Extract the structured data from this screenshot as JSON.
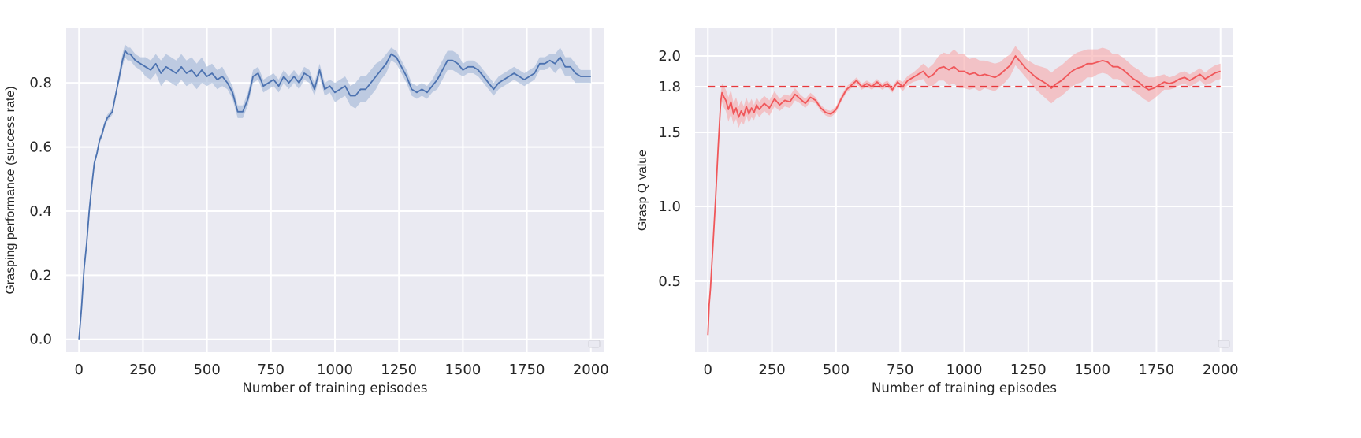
{
  "chart_data": [
    {
      "type": "line",
      "xlabel": "Number of training episodes",
      "ylabel": "Grasping performance (success rate)",
      "xlim": [
        -50,
        2050
      ],
      "ylim": [
        -0.04,
        0.97
      ],
      "xticks": [
        0,
        250,
        500,
        750,
        1000,
        1250,
        1500,
        1750,
        2000
      ],
      "yticks": [
        0.0,
        0.2,
        0.4,
        0.6,
        0.8
      ],
      "ytick_labels": [
        "0.0",
        "0.2",
        "0.4",
        "0.6",
        "0.8"
      ],
      "grid": true,
      "legend": "lower-right (empty box)",
      "color": "#4c72b0",
      "band_color": "#9fb4d6",
      "series": [
        {
          "x": [
            0,
            10,
            20,
            30,
            40,
            50,
            60,
            70,
            80,
            90,
            100,
            110,
            120,
            130,
            140,
            150,
            160,
            170,
            180,
            190,
            200,
            220,
            240,
            260,
            280,
            300,
            320,
            340,
            360,
            380,
            400,
            420,
            440,
            460,
            480,
            500,
            520,
            540,
            560,
            580,
            600,
            620,
            640,
            660,
            680,
            700,
            720,
            740,
            760,
            780,
            800,
            820,
            840,
            860,
            880,
            900,
            920,
            940,
            960,
            980,
            1000,
            1020,
            1040,
            1060,
            1080,
            1100,
            1120,
            1140,
            1160,
            1180,
            1200,
            1220,
            1240,
            1260,
            1280,
            1300,
            1320,
            1340,
            1360,
            1380,
            1400,
            1420,
            1440,
            1460,
            1480,
            1500,
            1520,
            1540,
            1560,
            1580,
            1600,
            1620,
            1640,
            1660,
            1680,
            1700,
            1720,
            1740,
            1760,
            1780,
            1800,
            1820,
            1840,
            1860,
            1880,
            1900,
            1920,
            1940,
            1960,
            1980,
            2000
          ],
          "y": [
            0.0,
            0.1,
            0.22,
            0.3,
            0.4,
            0.48,
            0.55,
            0.58,
            0.62,
            0.64,
            0.67,
            0.69,
            0.7,
            0.71,
            0.75,
            0.79,
            0.83,
            0.87,
            0.9,
            0.89,
            0.89,
            0.87,
            0.86,
            0.85,
            0.84,
            0.86,
            0.83,
            0.85,
            0.84,
            0.83,
            0.85,
            0.83,
            0.84,
            0.82,
            0.84,
            0.82,
            0.83,
            0.81,
            0.82,
            0.8,
            0.77,
            0.71,
            0.71,
            0.75,
            0.82,
            0.83,
            0.79,
            0.8,
            0.81,
            0.79,
            0.82,
            0.8,
            0.82,
            0.8,
            0.83,
            0.82,
            0.78,
            0.84,
            0.78,
            0.79,
            0.77,
            0.78,
            0.79,
            0.76,
            0.76,
            0.78,
            0.78,
            0.8,
            0.82,
            0.84,
            0.86,
            0.89,
            0.88,
            0.85,
            0.82,
            0.78,
            0.77,
            0.78,
            0.77,
            0.79,
            0.81,
            0.84,
            0.87,
            0.87,
            0.86,
            0.84,
            0.85,
            0.85,
            0.84,
            0.82,
            0.8,
            0.78,
            0.8,
            0.81,
            0.82,
            0.83,
            0.82,
            0.81,
            0.82,
            0.83,
            0.86,
            0.86,
            0.87,
            0.86,
            0.88,
            0.85,
            0.85,
            0.83,
            0.82,
            0.82,
            0.82
          ],
          "band": [
            0.0,
            0.01,
            0.01,
            0.01,
            0.01,
            0.01,
            0.01,
            0.01,
            0.01,
            0.01,
            0.01,
            0.01,
            0.01,
            0.01,
            0.01,
            0.01,
            0.02,
            0.02,
            0.02,
            0.02,
            0.02,
            0.02,
            0.02,
            0.03,
            0.03,
            0.03,
            0.04,
            0.04,
            0.04,
            0.04,
            0.04,
            0.04,
            0.04,
            0.04,
            0.04,
            0.03,
            0.03,
            0.03,
            0.03,
            0.02,
            0.02,
            0.02,
            0.02,
            0.02,
            0.02,
            0.02,
            0.02,
            0.02,
            0.02,
            0.02,
            0.02,
            0.02,
            0.02,
            0.02,
            0.02,
            0.02,
            0.02,
            0.02,
            0.02,
            0.02,
            0.03,
            0.03,
            0.03,
            0.03,
            0.04,
            0.04,
            0.04,
            0.04,
            0.04,
            0.03,
            0.03,
            0.02,
            0.02,
            0.02,
            0.02,
            0.02,
            0.02,
            0.02,
            0.02,
            0.02,
            0.03,
            0.03,
            0.03,
            0.03,
            0.03,
            0.02,
            0.02,
            0.02,
            0.02,
            0.02,
            0.02,
            0.02,
            0.02,
            0.02,
            0.02,
            0.02,
            0.02,
            0.02,
            0.02,
            0.02,
            0.02,
            0.02,
            0.02,
            0.03,
            0.03,
            0.03,
            0.03,
            0.03,
            0.02,
            0.02,
            0.02
          ]
        }
      ]
    },
    {
      "type": "line",
      "xlabel": "Number of training episodes",
      "ylabel": "Grasp Q value",
      "xlim": [
        -50,
        2050
      ],
      "ylim": [
        0.1,
        2.1
      ],
      "xticks": [
        0,
        250,
        500,
        750,
        1000,
        1250,
        1500,
        1750,
        2000
      ],
      "yticks": [
        0.5,
        1.0,
        1.5,
        1.8,
        2.0
      ],
      "ytick_labels": [
        "0.5",
        "1.0",
        "1.5",
        "1.8",
        "2.0"
      ],
      "grid": true,
      "legend": "lower-right (empty box)",
      "color": "#f0575a",
      "band_color": "#f6a6a8",
      "reference_line": {
        "y": 1.8,
        "style": "dashed",
        "color": "#e8383c"
      },
      "series": [
        {
          "x": [
            0,
            5,
            10,
            20,
            30,
            40,
            50,
            55,
            60,
            70,
            80,
            90,
            100,
            110,
            120,
            130,
            140,
            150,
            160,
            170,
            180,
            190,
            200,
            220,
            240,
            260,
            280,
            300,
            320,
            340,
            360,
            380,
            400,
            420,
            440,
            460,
            480,
            500,
            520,
            540,
            560,
            580,
            600,
            620,
            640,
            660,
            680,
            700,
            720,
            740,
            760,
            780,
            800,
            820,
            840,
            860,
            880,
            900,
            920,
            940,
            960,
            980,
            1000,
            1020,
            1040,
            1060,
            1080,
            1100,
            1120,
            1140,
            1160,
            1180,
            1200,
            1220,
            1240,
            1260,
            1280,
            1300,
            1320,
            1340,
            1360,
            1380,
            1400,
            1420,
            1440,
            1460,
            1480,
            1500,
            1520,
            1540,
            1560,
            1580,
            1600,
            1620,
            1640,
            1660,
            1680,
            1700,
            1720,
            1740,
            1760,
            1780,
            1800,
            1820,
            1840,
            1860,
            1880,
            1900,
            1920,
            1940,
            1960,
            1980,
            2000
          ],
          "y": [
            0.15,
            0.35,
            0.45,
            0.75,
            1.05,
            1.4,
            1.7,
            1.76,
            1.74,
            1.71,
            1.65,
            1.7,
            1.62,
            1.66,
            1.6,
            1.64,
            1.61,
            1.67,
            1.62,
            1.66,
            1.63,
            1.68,
            1.65,
            1.69,
            1.66,
            1.72,
            1.68,
            1.71,
            1.7,
            1.75,
            1.72,
            1.69,
            1.73,
            1.71,
            1.66,
            1.63,
            1.62,
            1.65,
            1.72,
            1.78,
            1.81,
            1.84,
            1.8,
            1.82,
            1.8,
            1.83,
            1.8,
            1.82,
            1.78,
            1.83,
            1.8,
            1.84,
            1.86,
            1.88,
            1.9,
            1.86,
            1.88,
            1.92,
            1.93,
            1.91,
            1.93,
            1.9,
            1.9,
            1.88,
            1.89,
            1.87,
            1.88,
            1.87,
            1.86,
            1.88,
            1.91,
            1.94,
            2.0,
            1.96,
            1.92,
            1.89,
            1.86,
            1.84,
            1.82,
            1.79,
            1.82,
            1.84,
            1.87,
            1.9,
            1.92,
            1.93,
            1.95,
            1.95,
            1.96,
            1.97,
            1.96,
            1.93,
            1.93,
            1.91,
            1.88,
            1.85,
            1.83,
            1.8,
            1.78,
            1.79,
            1.81,
            1.83,
            1.82,
            1.83,
            1.85,
            1.86,
            1.84,
            1.86,
            1.88,
            1.85,
            1.87,
            1.89,
            1.9
          ],
          "band": [
            0.0,
            0.01,
            0.02,
            0.02,
            0.02,
            0.03,
            0.05,
            0.06,
            0.07,
            0.07,
            0.08,
            0.08,
            0.07,
            0.07,
            0.07,
            0.07,
            0.06,
            0.06,
            0.06,
            0.06,
            0.05,
            0.05,
            0.05,
            0.05,
            0.05,
            0.05,
            0.04,
            0.04,
            0.04,
            0.04,
            0.03,
            0.03,
            0.03,
            0.02,
            0.02,
            0.02,
            0.02,
            0.02,
            0.02,
            0.02,
            0.02,
            0.02,
            0.02,
            0.02,
            0.02,
            0.02,
            0.02,
            0.02,
            0.02,
            0.02,
            0.03,
            0.03,
            0.03,
            0.04,
            0.05,
            0.06,
            0.07,
            0.08,
            0.09,
            0.1,
            0.11,
            0.11,
            0.11,
            0.1,
            0.1,
            0.1,
            0.09,
            0.09,
            0.09,
            0.08,
            0.08,
            0.07,
            0.06,
            0.06,
            0.06,
            0.07,
            0.08,
            0.09,
            0.1,
            0.1,
            0.1,
            0.1,
            0.1,
            0.1,
            0.1,
            0.1,
            0.09,
            0.09,
            0.08,
            0.08,
            0.08,
            0.08,
            0.08,
            0.08,
            0.08,
            0.08,
            0.08,
            0.08,
            0.08,
            0.07,
            0.06,
            0.05,
            0.04,
            0.04,
            0.04,
            0.04,
            0.04,
            0.04,
            0.04,
            0.04,
            0.05,
            0.05,
            0.05
          ]
        }
      ]
    }
  ]
}
